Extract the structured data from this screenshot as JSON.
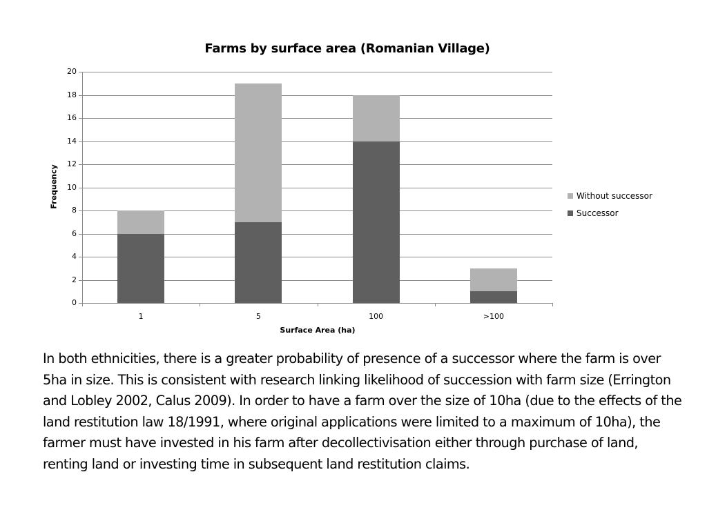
{
  "slide": {
    "title": "Farms by surface area (Romanian Village)",
    "body_text": "In both ethnicities, there is a greater probability of presence of a successor where the farm is over 5ha in size. This is consistent with research linking likelihood of succession with farm size (Errington and Lobley 2002, Calus 2009). In order to have a farm over the size of 10ha (due to the effects of the land restitution law 18/1991, where original applications were limited to a maximum of 10ha), the farmer must have invested in his farm after decollectivisation either through purchase of land, renting land or investing time in subsequent land restitution claims."
  },
  "colors": {
    "successor": "#5f5f5f",
    "without_successor": "#b2b2b2",
    "gridline": "#8a8a8a"
  },
  "chart_data": {
    "type": "bar",
    "stacked": true,
    "title": "Farms by surface area (Romanian Village)",
    "xlabel": "Surface Area (ha)",
    "ylabel": "Frequency",
    "categories": [
      "1",
      "5",
      "100",
      ">100"
    ],
    "series": [
      {
        "name": "Successor",
        "values": [
          6,
          7,
          14,
          1
        ],
        "color": "#5f5f5f"
      },
      {
        "name": "Without successor",
        "values": [
          2,
          12,
          4,
          2
        ],
        "color": "#b2b2b2"
      }
    ],
    "totals": [
      8,
      19,
      18,
      3
    ],
    "ylim": [
      0,
      20
    ],
    "yticks": [
      0,
      2,
      4,
      6,
      8,
      10,
      12,
      14,
      16,
      18,
      20
    ],
    "grid": true,
    "legend_position": "right",
    "legend_order": [
      "Without successor",
      "Successor"
    ]
  }
}
